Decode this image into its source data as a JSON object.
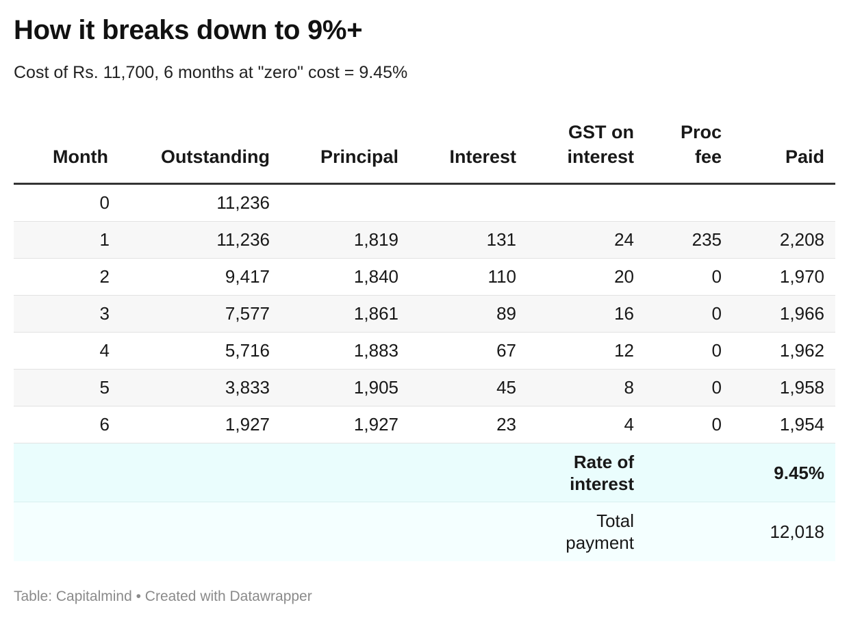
{
  "title": "How it breaks down to 9%+",
  "subtitle": "Cost of Rs. 11,700, 6 months at \"zero\" cost = 9.45%",
  "footer": "Table: Capitalmind • Created with Datawrapper",
  "chart_data": {
    "type": "table",
    "title": "How it breaks down to 9%+",
    "subtitle": "Cost of Rs. 11,700, 6 months at \"zero\" cost = 9.45%",
    "headers": [
      [
        "Month"
      ],
      [
        "Outstanding"
      ],
      [
        "Principal"
      ],
      [
        "Interest"
      ],
      [
        "GST on",
        "interest"
      ],
      [
        "Proc",
        "fee"
      ],
      [
        "Paid"
      ]
    ],
    "rows": [
      [
        "0",
        "11,236",
        "",
        "",
        "",
        "",
        ""
      ],
      [
        "1",
        "11,236",
        "1,819",
        "131",
        "24",
        "235",
        "2,208"
      ],
      [
        "2",
        "9,417",
        "1,840",
        "110",
        "20",
        "0",
        "1,970"
      ],
      [
        "3",
        "7,577",
        "1,861",
        "89",
        "16",
        "0",
        "1,966"
      ],
      [
        "4",
        "5,716",
        "1,883",
        "67",
        "12",
        "0",
        "1,962"
      ],
      [
        "5",
        "3,833",
        "1,905",
        "45",
        "8",
        "0",
        "1,958"
      ],
      [
        "6",
        "1,927",
        "1,927",
        "23",
        "4",
        "0",
        "1,954"
      ]
    ],
    "summary": [
      {
        "label": [
          "Rate of",
          "interest"
        ],
        "value": "9.45%"
      },
      {
        "label": [
          "Total",
          "payment"
        ],
        "value": "12,018"
      }
    ],
    "source": "Table: Capitalmind • Created with Datawrapper"
  }
}
